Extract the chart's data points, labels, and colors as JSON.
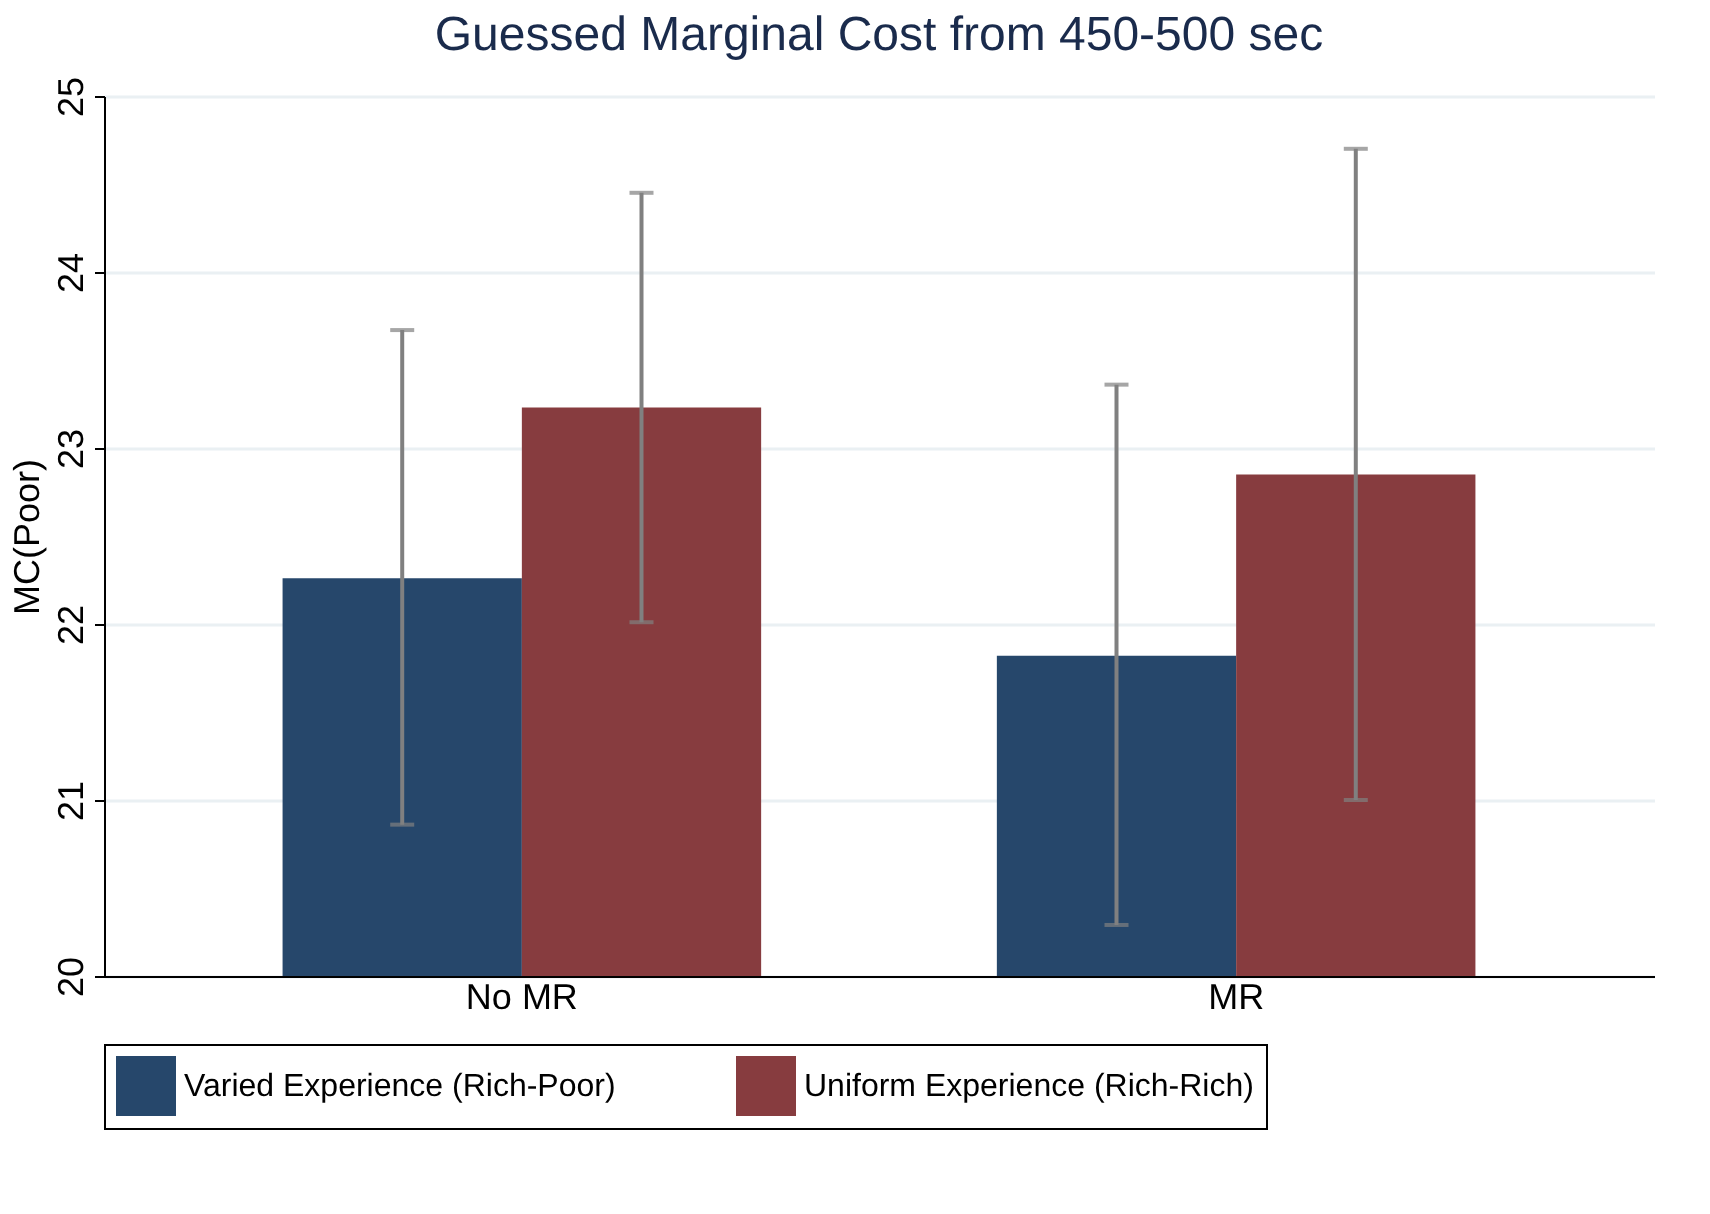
{
  "chart_data": {
    "type": "bar",
    "title": "Guessed Marginal Cost from 450-500 sec",
    "ylabel": "MC(Poor)",
    "categories": [
      "No MR",
      "MR"
    ],
    "series": [
      {
        "name": "Varied Experience (Rich-Poor)",
        "color": "#26476b",
        "values": [
          22.26,
          21.82
        ],
        "errors": [
          [
            20.86,
            23.67
          ],
          [
            20.29,
            23.36
          ]
        ]
      },
      {
        "name": "Uniform Experience (Rich-Rich)",
        "color": "#873c3f",
        "values": [
          23.23,
          22.85
        ],
        "errors": [
          [
            22.01,
            24.45
          ],
          [
            21.0,
            24.7
          ]
        ]
      }
    ],
    "ylim": [
      20,
      25
    ],
    "yticks": [
      20,
      21,
      22,
      23,
      24,
      25
    ],
    "grid": "y",
    "legend": "bottom"
  }
}
